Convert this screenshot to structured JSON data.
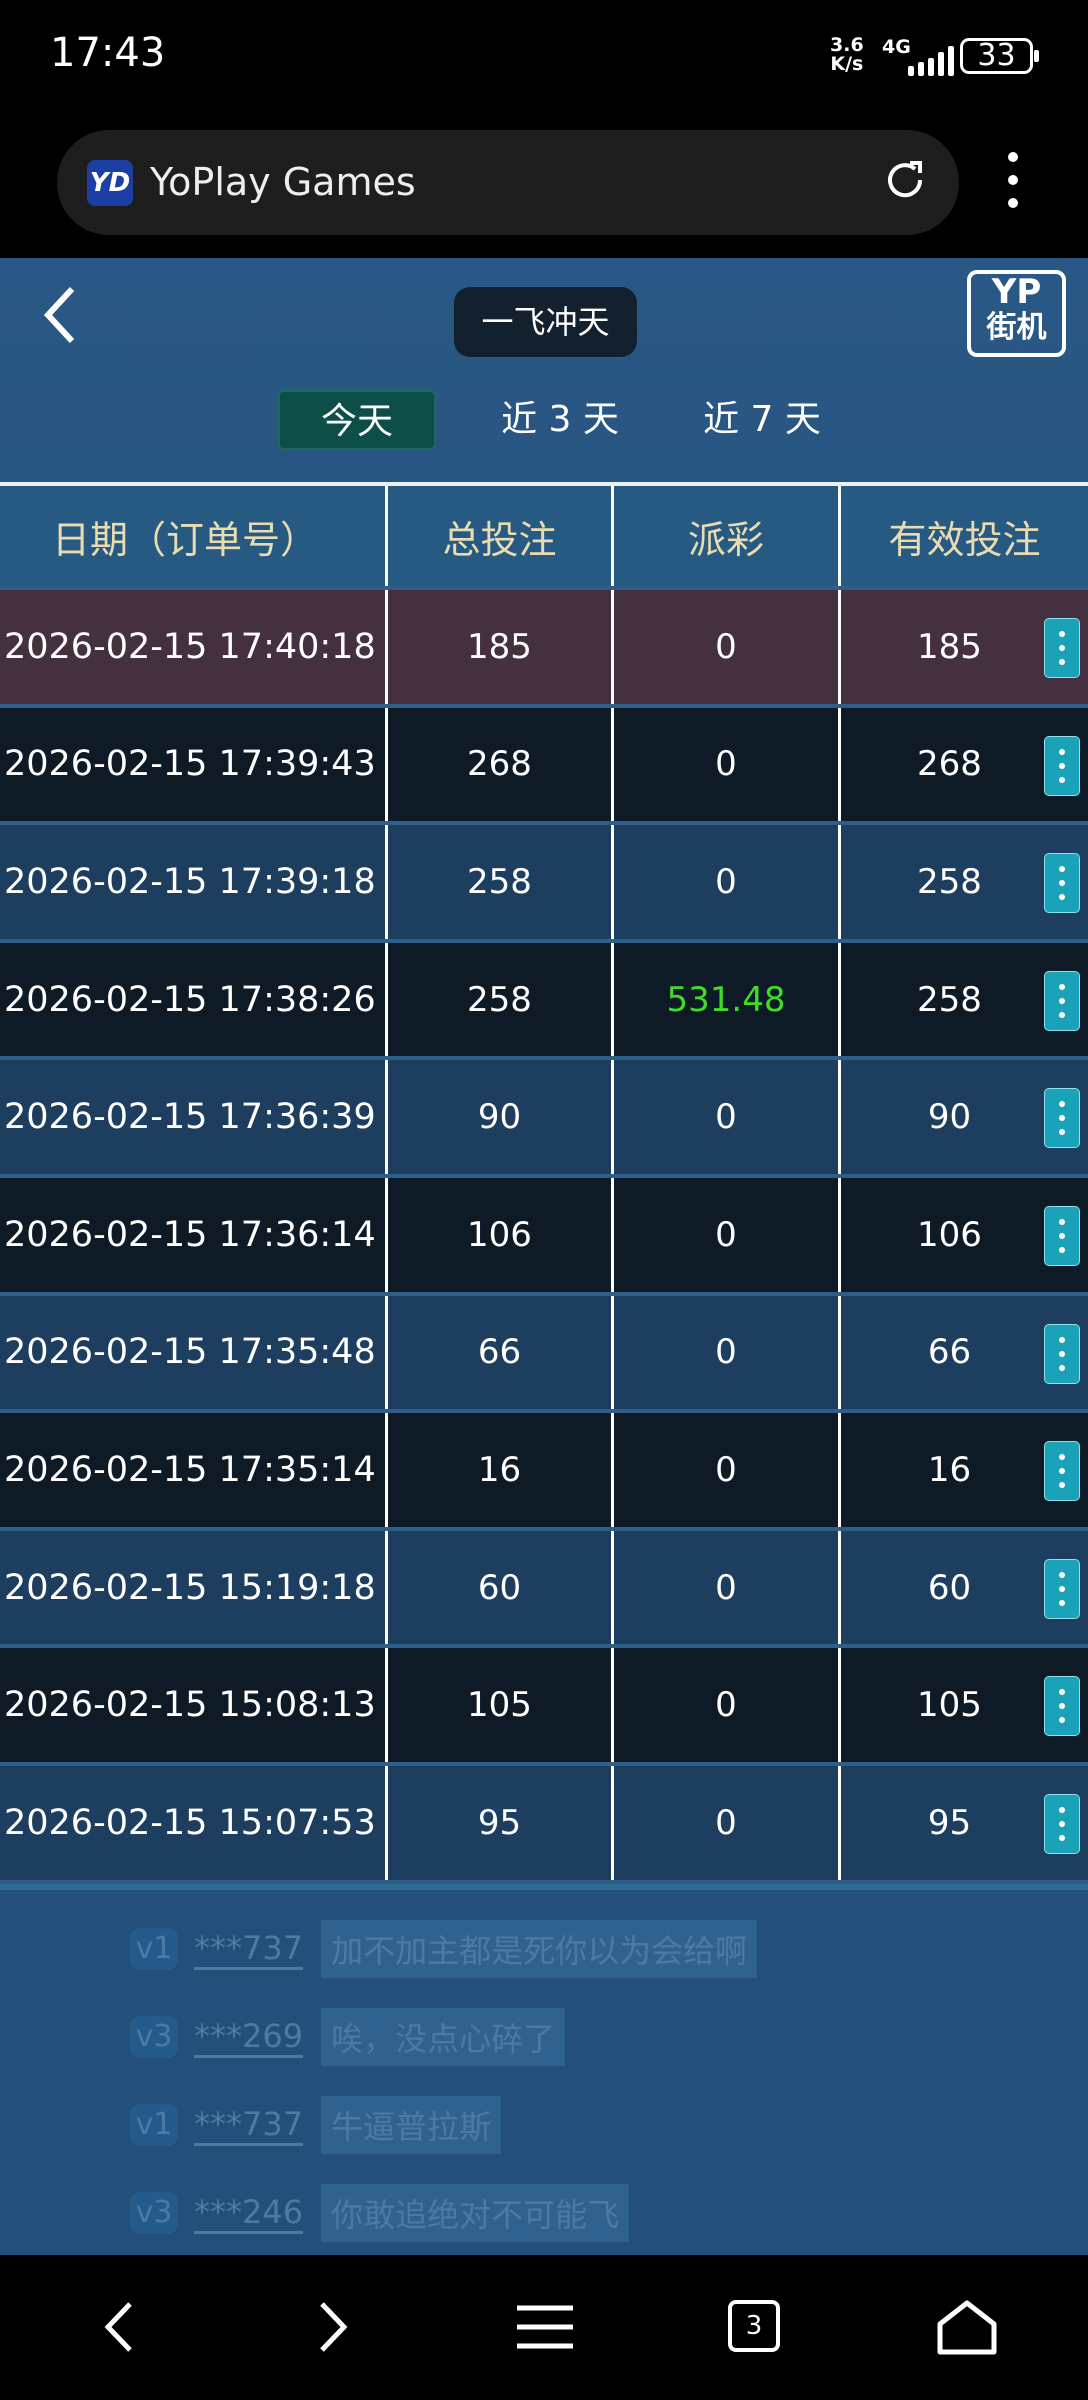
{
  "status": {
    "time": "17:43",
    "speed": "3.6",
    "speed_unit": "K/s",
    "network": "4G",
    "battery": "33"
  },
  "browser": {
    "logo": "YD",
    "site_name": "YoPlay Games",
    "icons": [
      "reload-icon",
      "more-vert-icon"
    ]
  },
  "header": {
    "title": "一飞冲天",
    "logo_top": "YP",
    "logo_bottom": "街机"
  },
  "tabs": [
    {
      "label": "今天",
      "active": true
    },
    {
      "label": "近 3 天"
    },
    {
      "label": "近 7 天"
    }
  ],
  "table": {
    "columns": [
      "日期（订单号）",
      "总投注",
      "派彩",
      "有效投注"
    ],
    "rows": [
      {
        "date": "2026-02-15 17:40:18",
        "bet": "185",
        "payout": "0",
        "valid": "185"
      },
      {
        "date": "2026-02-15 17:39:43",
        "bet": "268",
        "payout": "0",
        "valid": "268"
      },
      {
        "date": "2026-02-15 17:39:18",
        "bet": "258",
        "payout": "0",
        "valid": "258"
      },
      {
        "date": "2026-02-15 17:38:26",
        "bet": "258",
        "payout": "531.48",
        "valid": "258"
      },
      {
        "date": "2026-02-15 17:36:39",
        "bet": "90",
        "payout": "0",
        "valid": "90"
      },
      {
        "date": "2026-02-15 17:36:14",
        "bet": "106",
        "payout": "0",
        "valid": "106"
      },
      {
        "date": "2026-02-15 17:35:48",
        "bet": "66",
        "payout": "0",
        "valid": "66"
      },
      {
        "date": "2026-02-15 17:35:14",
        "bet": "16",
        "payout": "0",
        "valid": "16"
      },
      {
        "date": "2026-02-15 15:19:18",
        "bet": "60",
        "payout": "0",
        "valid": "60"
      },
      {
        "date": "2026-02-15 15:08:13",
        "bet": "105",
        "payout": "0",
        "valid": "105"
      },
      {
        "date": "2026-02-15 15:07:53",
        "bet": "95",
        "payout": "0",
        "valid": "95"
      }
    ]
  },
  "chat": [
    {
      "level": "v1",
      "user": "***737",
      "text": "加不加主都是死你以为会给啊"
    },
    {
      "level": "v3",
      "user": "***269",
      "text": "唉，没点心碎了"
    },
    {
      "level": "v1",
      "user": "***737",
      "text": "牛逼普拉斯"
    },
    {
      "level": "v3",
      "user": "***246",
      "text": "你敢追绝对不可能飞"
    }
  ],
  "nav": {
    "tab_count": "3"
  },
  "colors": {
    "win": "#3fdc2a",
    "menu_button": "#1aa3b8",
    "active_tab": "#0d4f48",
    "highlight_row": "#45303f"
  }
}
